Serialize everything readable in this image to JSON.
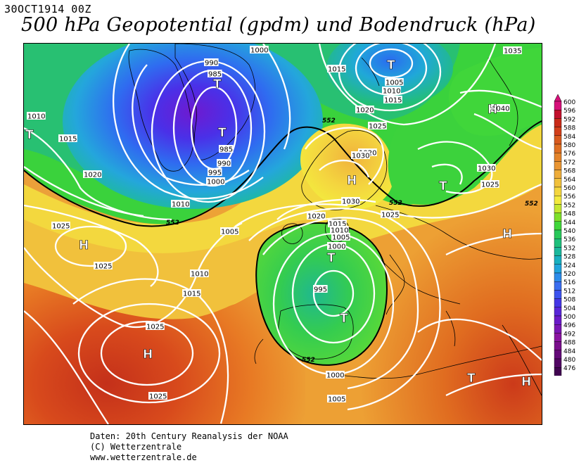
{
  "header": {
    "date_label": "30OCT1914 00Z",
    "title": "500 hPa Geopotential (gpdm) und Bodendruck (hPa)"
  },
  "colorbar": {
    "levels": [
      "600",
      "596",
      "592",
      "588",
      "584",
      "580",
      "576",
      "572",
      "568",
      "564",
      "560",
      "556",
      "552",
      "548",
      "544",
      "540",
      "536",
      "532",
      "528",
      "524",
      "520",
      "516",
      "512",
      "508",
      "504",
      "500",
      "496",
      "492",
      "488",
      "484",
      "480",
      "476"
    ],
    "colors": [
      "#d6107a",
      "#c2102c",
      "#c92a18",
      "#d23f1a",
      "#d85a1e",
      "#df6f22",
      "#e4842a",
      "#e99532",
      "#eead3a",
      "#f1c13c",
      "#f4d63f",
      "#f3ea3e",
      "#c5e830",
      "#7ee02a",
      "#40d63a",
      "#28c85a",
      "#1ec07c",
      "#1ab89c",
      "#18b0c0",
      "#20a4dc",
      "#2c8cea",
      "#3a6ef0",
      "#3c52ee",
      "#4436e6",
      "#5826d8",
      "#6a1ac8",
      "#7a16b4",
      "#8a14a0",
      "#7a0e8c",
      "#640a78",
      "#520664",
      "#400450"
    ]
  },
  "pressure_centers": [
    {
      "label": "T"
    },
    {
      "label": "T"
    },
    {
      "label": "T"
    },
    {
      "label": "T"
    },
    {
      "label": "T"
    },
    {
      "label": "T"
    },
    {
      "label": "T"
    },
    {
      "label": "T"
    },
    {
      "label": "H"
    },
    {
      "label": "H"
    },
    {
      "label": "H"
    },
    {
      "label": "H"
    },
    {
      "label": "H"
    },
    {
      "label": "H"
    }
  ],
  "isobar_labels": [
    "990",
    "985",
    "1000",
    "1015",
    "1035",
    "1005",
    "1010",
    "1015",
    "1020",
    "1025",
    "1040",
    "1010",
    "1015",
    "985",
    "990",
    "995",
    "1000",
    "1020",
    "1030",
    "1020",
    "1030",
    "1025",
    "1010",
    "1030",
    "1020",
    "1025",
    "1025",
    "1005",
    "1025",
    "1015",
    "1010",
    "1005",
    "1000",
    "1010",
    "1015",
    "995",
    "1025",
    "1025",
    "1000",
    "1005"
  ],
  "contour_labels_552": [
    "552",
    "552",
    "552",
    "552",
    "552"
  ],
  "credits": {
    "line1": "Daten: 20th Century Reanalysis der NOAA",
    "line2": "(C) Wetterzentrale",
    "line3": "www.wetterzentrale.de"
  }
}
